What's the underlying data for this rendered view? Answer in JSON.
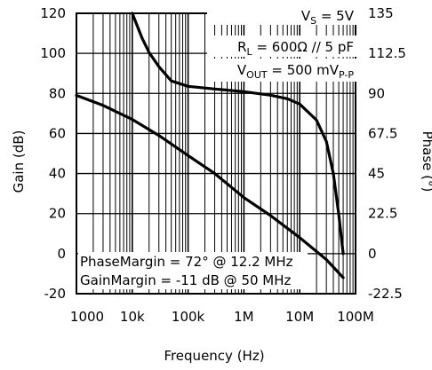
{
  "chart_data": {
    "type": "line",
    "xlabel": "Frequency (Hz)",
    "ylabel": "Gain (dB)",
    "y2label": "Phase (°)",
    "x_scale": "log",
    "xlim": [
      1000,
      100000000
    ],
    "ylim": [
      -20,
      120
    ],
    "y2lim": [
      -22.5,
      135
    ],
    "grid": true,
    "x_ticks": [
      {
        "value": 1000,
        "label": "1000"
      },
      {
        "value": 10000,
        "label": "10k"
      },
      {
        "value": 100000,
        "label": "100k"
      },
      {
        "value": 1000000,
        "label": "1M"
      },
      {
        "value": 10000000,
        "label": "10M"
      },
      {
        "value": 100000000,
        "label": "100M"
      }
    ],
    "y_ticks": [
      {
        "value": -20,
        "label": "-20"
      },
      {
        "value": 0,
        "label": "0"
      },
      {
        "value": 20,
        "label": "20"
      },
      {
        "value": 40,
        "label": "40"
      },
      {
        "value": 60,
        "label": "60"
      },
      {
        "value": 80,
        "label": "80"
      },
      {
        "value": 100,
        "label": "100"
      },
      {
        "value": 120,
        "label": "120"
      }
    ],
    "y2_ticks": [
      {
        "value": -22.5,
        "label": "-22.5"
      },
      {
        "value": 0,
        "label": "0"
      },
      {
        "value": 22.5,
        "label": "22.5"
      },
      {
        "value": 45,
        "label": "45"
      },
      {
        "value": 67.5,
        "label": "67.5"
      },
      {
        "value": 90,
        "label": "90"
      },
      {
        "value": 112.5,
        "label": "112.5"
      },
      {
        "value": 135,
        "label": "135"
      }
    ],
    "series": [
      {
        "axis": "left",
        "x": [
          1000,
          3000,
          10000,
          30000,
          100000,
          300000,
          1000000,
          3000000,
          10000000,
          30000000,
          60000000
        ],
        "y": [
          79,
          74,
          67,
          59,
          49,
          40,
          28,
          19,
          8,
          -3,
          -12
        ]
      },
      {
        "axis": "right",
        "x": [
          10000,
          15000,
          20000,
          30000,
          50000,
          100000,
          300000,
          1000000,
          3000000,
          6000000,
          10000000,
          20000000,
          30000000,
          40000000,
          50000000,
          60000000
        ],
        "y": [
          135,
          121,
          113,
          105,
          97,
          94,
          92.5,
          91,
          89,
          87,
          84,
          75,
          63,
          45,
          22,
          0
        ]
      }
    ],
    "annotations": {
      "conditions": [
        {
          "main": "V",
          "sub": "S",
          "rest": " = 5V"
        },
        {
          "main": "R",
          "sub": "L",
          "rest": " = 600Ω // 5 pF"
        },
        {
          "main": "V",
          "sub": "OUT",
          "rest": " = 500 mV",
          "sub2": "P-P"
        }
      ],
      "margins": [
        "PhaseMargin = 72° @ 12.2 MHz",
        "GainMargin = -11 dB @ 50 MHz"
      ]
    }
  }
}
